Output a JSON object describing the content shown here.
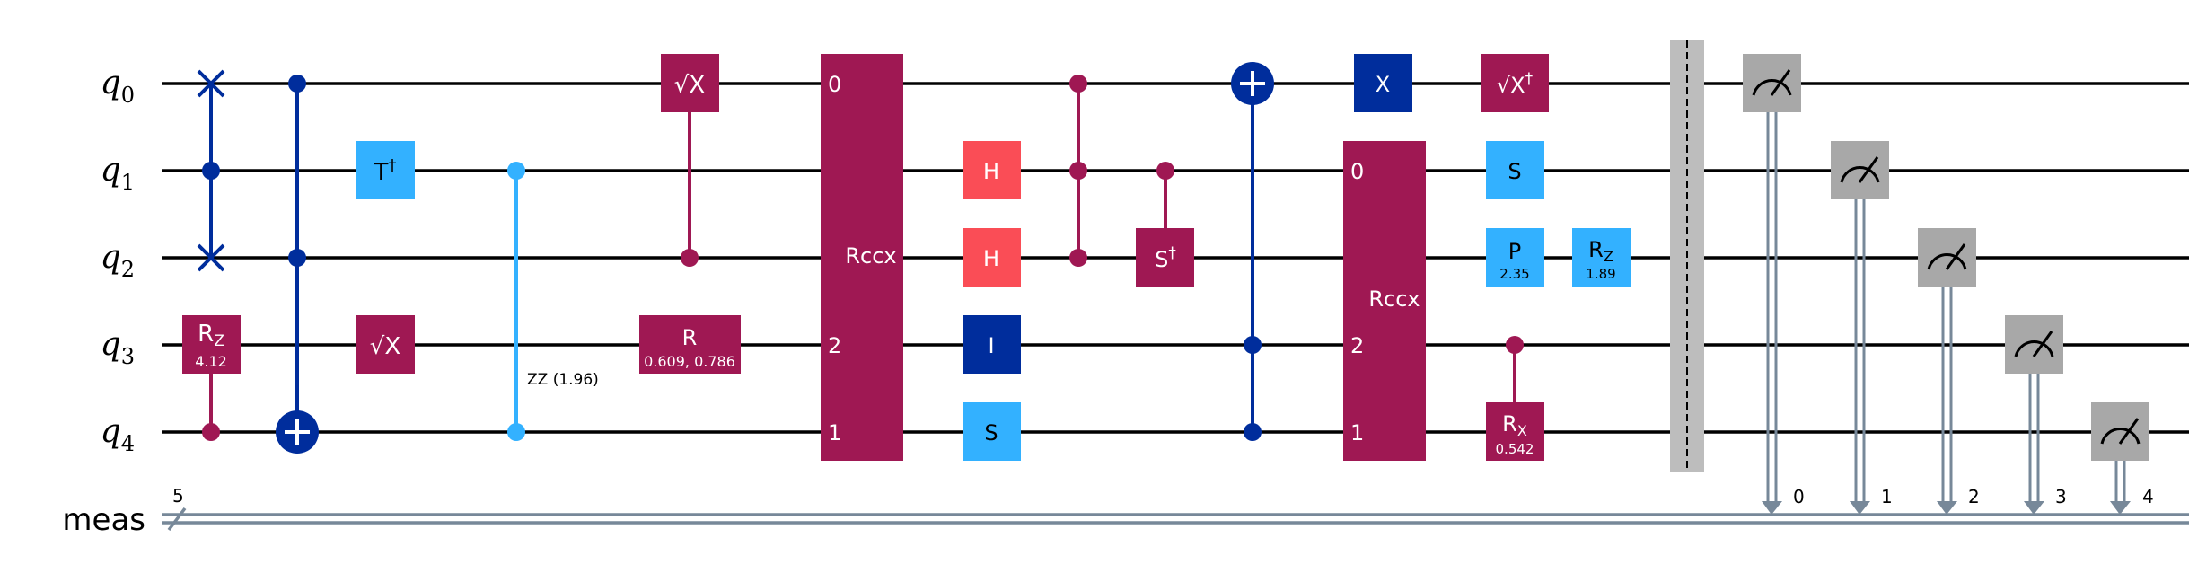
{
  "qubits": [
    {
      "name": "q",
      "index": "0"
    },
    {
      "name": "q",
      "index": "1"
    },
    {
      "name": "q",
      "index": "2"
    },
    {
      "name": "q",
      "index": "3"
    },
    {
      "name": "q",
      "index": "4"
    }
  ],
  "classical_register": {
    "name": "meas",
    "width": "5"
  },
  "colors": {
    "purple": "#9F1853",
    "lightblue": "#33B1FF",
    "darkblue": "#002D9C",
    "red": "#FA4D56",
    "gray": "#A8A8A8",
    "creg": "#778899",
    "barrier": "#BDBDBD"
  },
  "gates": {
    "swap": {
      "qubits": [
        0,
        2
      ]
    },
    "rz_q3": {
      "label": "R",
      "sub": "Z",
      "param": "4.12"
    },
    "cnot_top": {
      "controls": [
        0,
        2
      ],
      "target": 4
    },
    "tdg": {
      "label": "T",
      "sup": "†"
    },
    "sx_q3": {
      "label": "√X"
    },
    "zz": {
      "qubits": [
        1,
        4
      ],
      "label": "ZZ (1.96)"
    },
    "sx_q0": {
      "label": "√X"
    },
    "r_q3": {
      "label": "R",
      "param": "0.609, 0.786"
    },
    "rccx_1": {
      "label": "Rccx",
      "port_labels": [
        "0",
        "2",
        "1"
      ]
    },
    "h_q1": {
      "label": "H"
    },
    "h_q2": {
      "label": "H"
    },
    "i_q3": {
      "label": "I"
    },
    "s_q4": {
      "label": "S"
    },
    "ccz": {
      "qubits": [
        0,
        1,
        2
      ]
    },
    "csdg": {
      "label": "S",
      "sup": "†"
    },
    "ccx": {
      "controls": [
        3,
        4
      ],
      "target": 0
    },
    "x_q0": {
      "label": "X"
    },
    "rccx_2": {
      "label": "Rccx",
      "port_labels": [
        "0",
        "2",
        "1"
      ]
    },
    "sxdg_q0": {
      "label": "√X",
      "sup": "†"
    },
    "s_q1": {
      "label": "S"
    },
    "p_q2": {
      "label": "P",
      "param": "2.35"
    },
    "rz_q2": {
      "label": "R",
      "sub": "Z",
      "param": "1.89"
    },
    "crx": {
      "label": "R",
      "sub": "X",
      "param": "0.542"
    }
  },
  "measurements": [
    {
      "qubit": 0,
      "bit": "0"
    },
    {
      "qubit": 1,
      "bit": "1"
    },
    {
      "qubit": 2,
      "bit": "2"
    },
    {
      "qubit": 3,
      "bit": "3"
    },
    {
      "qubit": 4,
      "bit": "4"
    }
  ]
}
